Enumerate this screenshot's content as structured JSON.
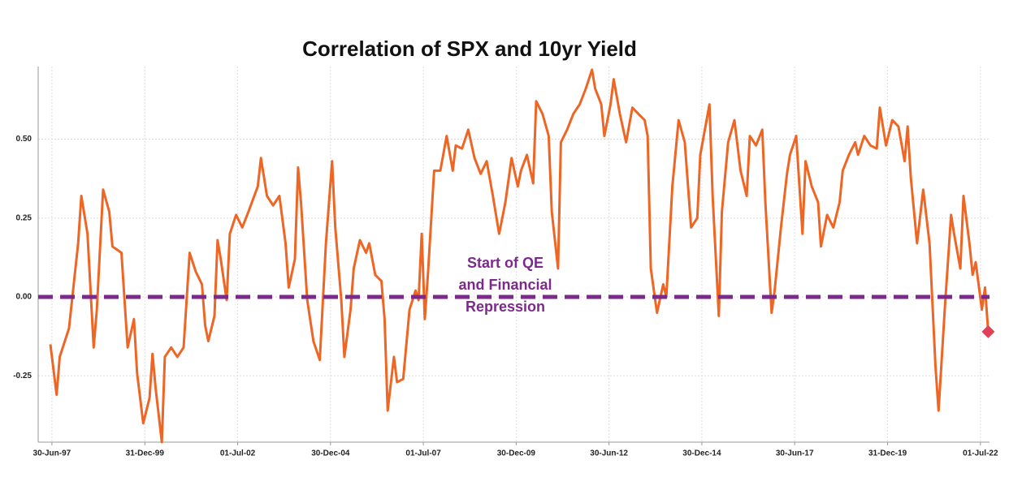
{
  "chart_data": {
    "type": "line",
    "title": "Correlation of SPX and 10yr Yield",
    "annotation": [
      "Start of QE",
      "and Financial",
      "Repression"
    ],
    "annotation_color": "#7b2a8c",
    "reference_line": {
      "value": 0,
      "color": "#7b2a8c",
      "dashed": true
    },
    "end_marker_color": "#e0405a",
    "grid": true,
    "xlim": [
      "1997-02-15",
      "2022-09-28"
    ],
    "ylim": [
      -0.46,
      0.73
    ],
    "xticks": [
      {
        "value": "1997-06-30",
        "label": "30-Jun-97"
      },
      {
        "value": "1999-12-31",
        "label": "31-Dec-99"
      },
      {
        "value": "2002-07-01",
        "label": "01-Jul-02"
      },
      {
        "value": "2004-12-30",
        "label": "30-Dec-04"
      },
      {
        "value": "2007-07-01",
        "label": "01-Jul-07"
      },
      {
        "value": "2009-12-30",
        "label": "30-Dec-09"
      },
      {
        "value": "2012-06-30",
        "label": "30-Jun-12"
      },
      {
        "value": "2014-12-30",
        "label": "30-Dec-14"
      },
      {
        "value": "2017-06-30",
        "label": "30-Jun-17"
      },
      {
        "value": "2019-12-31",
        "label": "31-Dec-19"
      },
      {
        "value": "2022-07-01",
        "label": "01-Jul-22"
      }
    ],
    "yticks": [
      {
        "value": 0.5,
        "label": "0.50"
      },
      {
        "value": 0.25,
        "label": "0.25"
      },
      {
        "value": 0,
        "label": "0.00"
      },
      {
        "value": -0.25,
        "label": "-0.25"
      }
    ],
    "x": [
      "1997-06-15",
      "1997-08-15",
      "1997-09-15",
      "1997-12-15",
      "1998-03-15",
      "1998-04-15",
      "1998-06-15",
      "1998-08-15",
      "1998-09-15",
      "1998-11-15",
      "1999-01-15",
      "1999-02-15",
      "1999-05-15",
      "1999-07-15",
      "1999-09-15",
      "1999-10-15",
      "1999-12-15",
      "2000-02-15",
      "2000-03-15",
      "2000-04-15",
      "2000-06-15",
      "2000-07-15",
      "2000-09-15",
      "2000-11-15",
      "2001-01-15",
      "2001-03-15",
      "2001-05-15",
      "2001-07-15",
      "2001-08-15",
      "2001-09-15",
      "2001-11-15",
      "2001-12-15",
      "2002-01-15",
      "2002-03-15",
      "2002-04-15",
      "2002-06-15",
      "2002-08-15",
      "2002-10-15",
      "2003-01-15",
      "2003-02-15",
      "2003-04-15",
      "2003-06-15",
      "2003-08-15",
      "2003-10-15",
      "2003-11-15",
      "2004-01-15",
      "2004-02-15",
      "2004-03-15",
      "2004-05-15",
      "2004-07-15",
      "2004-09-15",
      "2004-11-15",
      "2005-01-15",
      "2005-02-15",
      "2005-04-15",
      "2005-05-15",
      "2005-07-15",
      "2005-08-15",
      "2005-10-15",
      "2005-12-15",
      "2006-01-15",
      "2006-03-15",
      "2006-05-15",
      "2006-06-15",
      "2006-07-15",
      "2006-09-15",
      "2006-10-15",
      "2006-12-15",
      "2007-02-15",
      "2007-04-15",
      "2007-05-15",
      "2007-06-15",
      "2007-07-15",
      "2007-08-15",
      "2007-10-15",
      "2007-12-15",
      "2008-02-15",
      "2008-04-15",
      "2008-05-15",
      "2008-07-15",
      "2008-09-15",
      "2008-11-15",
      "2009-01-15",
      "2009-03-15",
      "2009-05-15",
      "2009-07-15",
      "2009-09-15",
      "2009-11-15",
      "2010-01-15",
      "2010-02-15",
      "2010-04-15",
      "2010-06-15",
      "2010-07-15",
      "2010-09-15",
      "2010-11-15",
      "2010-12-15",
      "2011-02-15",
      "2011-03-15",
      "2011-05-15",
      "2011-07-15",
      "2011-09-15",
      "2011-11-15",
      "2012-01-15",
      "2012-02-15",
      "2012-04-15",
      "2012-05-15",
      "2012-07-15",
      "2012-08-15",
      "2012-10-15",
      "2012-12-15",
      "2013-02-15",
      "2013-04-15",
      "2013-06-15",
      "2013-07-15",
      "2013-08-15",
      "2013-10-15",
      "2013-12-15",
      "2014-01-15",
      "2014-03-15",
      "2014-05-15",
      "2014-07-15",
      "2014-09-15",
      "2014-11-15",
      "2014-12-15",
      "2015-03-15",
      "2015-04-15",
      "2015-06-15",
      "2015-07-15",
      "2015-09-15",
      "2015-11-15",
      "2016-01-15",
      "2016-03-15",
      "2016-04-15",
      "2016-06-15",
      "2016-08-15",
      "2016-09-15",
      "2016-11-15",
      "2016-12-15",
      "2017-02-15",
      "2017-04-15",
      "2017-05-15",
      "2017-07-15",
      "2017-09-15",
      "2017-10-15",
      "2017-12-15",
      "2018-02-15",
      "2018-03-15",
      "2018-05-15",
      "2018-07-15",
      "2018-09-15",
      "2018-10-15",
      "2018-12-15",
      "2019-02-15",
      "2019-03-15",
      "2019-05-15",
      "2019-07-15",
      "2019-09-15",
      "2019-10-15",
      "2019-12-15",
      "2020-02-15",
      "2020-04-15",
      "2020-06-15",
      "2020-07-15",
      "2020-08-15",
      "2020-10-15",
      "2020-12-15",
      "2021-02-15",
      "2021-04-15",
      "2021-05-15",
      "2021-07-15",
      "2021-09-15",
      "2021-10-15",
      "2021-12-15",
      "2022-01-15",
      "2022-03-15",
      "2022-04-15",
      "2022-05-15",
      "2022-07-15",
      "2022-08-15",
      "2022-09-15"
    ],
    "series": [
      {
        "name": "Correlation",
        "color": "#ee6524",
        "values": [
          -0.15,
          -0.31,
          -0.19,
          -0.1,
          0.17,
          0.32,
          0.2,
          -0.16,
          -0.04,
          0.34,
          0.27,
          0.16,
          0.14,
          -0.16,
          -0.07,
          -0.24,
          -0.4,
          -0.32,
          -0.18,
          -0.29,
          -0.46,
          -0.19,
          -0.16,
          -0.19,
          -0.16,
          0.14,
          0.08,
          0.04,
          -0.09,
          -0.14,
          -0.06,
          0.18,
          0.12,
          -0.01,
          0.2,
          0.26,
          0.22,
          0.27,
          0.35,
          0.44,
          0.32,
          0.29,
          0.32,
          0.17,
          0.03,
          0.12,
          0.41,
          0.3,
          -0.01,
          -0.14,
          -0.2,
          0.17,
          0.43,
          0.22,
          -0.01,
          -0.19,
          -0.04,
          0.09,
          0.18,
          0.14,
          0.17,
          0.07,
          0.05,
          -0.07,
          -0.36,
          -0.19,
          -0.27,
          -0.26,
          -0.04,
          0.02,
          -0.01,
          0.2,
          -0.07,
          0.07,
          0.4,
          0.4,
          0.51,
          0.4,
          0.48,
          0.47,
          0.53,
          0.44,
          0.39,
          0.43,
          0.32,
          0.2,
          0.3,
          0.44,
          0.35,
          0.4,
          0.45,
          0.36,
          0.62,
          0.58,
          0.51,
          0.27,
          0.09,
          0.49,
          0.53,
          0.58,
          0.61,
          0.66,
          0.72,
          0.66,
          0.61,
          0.51,
          0.61,
          0.69,
          0.58,
          0.49,
          0.6,
          0.58,
          0.56,
          0.51,
          0.09,
          -0.05,
          0.04,
          0.0,
          0.35,
          0.56,
          0.49,
          0.22,
          0.25,
          0.45,
          0.61,
          0.32,
          -0.06,
          0.27,
          0.49,
          0.56,
          0.4,
          0.32,
          0.51,
          0.48,
          0.53,
          0.3,
          -0.05,
          0.02,
          0.22,
          0.39,
          0.45,
          0.51,
          0.2,
          0.43,
          0.35,
          0.3,
          0.16,
          0.26,
          0.22,
          0.3,
          0.4,
          0.45,
          0.49,
          0.45,
          0.51,
          0.48,
          0.47,
          0.6,
          0.48,
          0.56,
          0.54,
          0.43,
          0.54,
          0.38,
          0.17,
          0.34,
          0.17,
          -0.22,
          -0.36,
          -0.04,
          0.26,
          0.2,
          0.09,
          0.32,
          0.17,
          0.07,
          0.11,
          -0.04,
          0.03,
          -0.11
        ]
      }
    ]
  }
}
